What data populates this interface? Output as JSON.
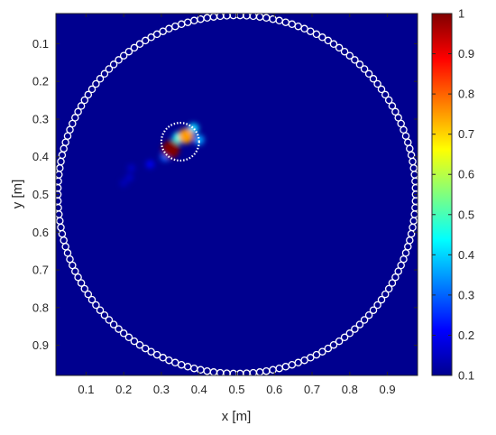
{
  "chart_data": {
    "type": "heatmap",
    "title": "",
    "xlabel": "x [m]",
    "ylabel": "y [m]",
    "xlim": [
      0.02,
      0.98
    ],
    "ylim": [
      0.02,
      0.98
    ],
    "y_direction": "reversed (0.1 at top)",
    "x_ticks": [
      "0.1",
      "0.2",
      "0.3",
      "0.4",
      "0.5",
      "0.6",
      "0.7",
      "0.8",
      "0.9"
    ],
    "y_ticks": [
      "0.1",
      "0.2",
      "0.3",
      "0.4",
      "0.5",
      "0.6",
      "0.7",
      "0.8",
      "0.9"
    ],
    "colorbar": {
      "colormap": "jet",
      "range": [
        0.1,
        1
      ],
      "ticks": [
        "0.1",
        "0.2",
        "0.3",
        "0.4",
        "0.5",
        "0.6",
        "0.7",
        "0.8",
        "0.9",
        "1"
      ]
    },
    "background_value": 0.1,
    "hotspots": [
      {
        "x": 0.325,
        "y": 0.38,
        "value": 1.0
      },
      {
        "x": 0.365,
        "y": 0.345,
        "value": 0.75
      },
      {
        "x": 0.345,
        "y": 0.35,
        "value": 0.45
      },
      {
        "x": 0.385,
        "y": 0.325,
        "value": 0.4
      },
      {
        "x": 0.4,
        "y": 0.355,
        "value": 0.35
      },
      {
        "x": 0.31,
        "y": 0.4,
        "value": 0.3
      },
      {
        "x": 0.27,
        "y": 0.42,
        "value": 0.2
      },
      {
        "x": 0.22,
        "y": 0.43,
        "value": 0.16
      },
      {
        "x": 0.215,
        "y": 0.455,
        "value": 0.16
      },
      {
        "x": 0.2,
        "y": 0.47,
        "value": 0.15
      }
    ],
    "overlays": [
      {
        "shape": "circle of ring markers",
        "center": [
          0.5,
          0.5
        ],
        "radius": 0.475,
        "color": "#ffffff"
      },
      {
        "shape": "dotted circle",
        "center": [
          0.35,
          0.36
        ],
        "radius": 0.05,
        "color": "#ffffff"
      }
    ]
  }
}
